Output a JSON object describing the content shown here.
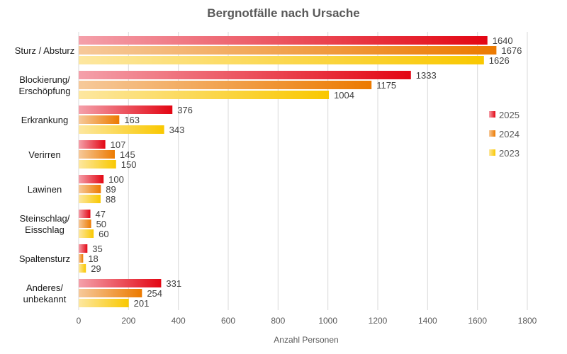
{
  "chart_data": {
    "type": "bar",
    "orientation": "horizontal",
    "title": "Bergnotfälle nach Ursache",
    "xlabel": "Anzahl Personen",
    "ylabel": "",
    "xlim": [
      0,
      1800
    ],
    "xticks": [
      0,
      200,
      400,
      600,
      800,
      1000,
      1200,
      1400,
      1600,
      1800
    ],
    "grid": true,
    "legend_position": "right",
    "categories": [
      [
        "Sturz / Absturz"
      ],
      [
        "Blockierung/",
        "Erschöpfung"
      ],
      [
        "Erkrankung"
      ],
      [
        "Verirren"
      ],
      [
        "Lawinen"
      ],
      [
        "Steinschlag/",
        "Eisschlag"
      ],
      [
        "Spaltensturz"
      ],
      [
        "Anderes/",
        "unbekannt"
      ]
    ],
    "series": [
      {
        "name": "2025",
        "color": "#e30613",
        "light": "#f4a0aa",
        "values": [
          1640,
          1333,
          376,
          107,
          100,
          47,
          35,
          331
        ]
      },
      {
        "name": "2024",
        "color": "#ec7a00",
        "light": "#f6c99a",
        "values": [
          1676,
          1175,
          163,
          145,
          89,
          50,
          18,
          254
        ]
      },
      {
        "name": "2023",
        "color": "#f9c800",
        "light": "#fde7a0",
        "values": [
          1626,
          1004,
          343,
          150,
          88,
          60,
          29,
          201
        ]
      }
    ]
  }
}
